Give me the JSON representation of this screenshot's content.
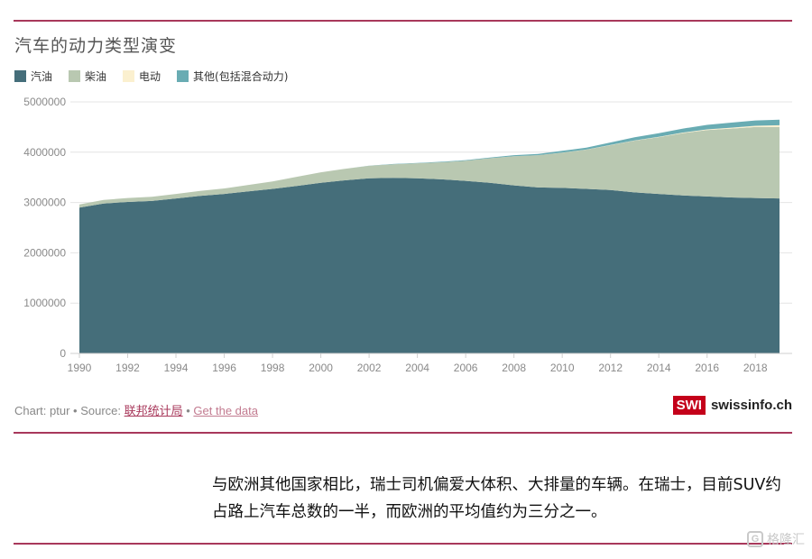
{
  "chart_data": {
    "type": "area",
    "stacked": true,
    "title": "汽车的动力类型演变",
    "x": [
      1990,
      1991,
      1992,
      1993,
      1994,
      1995,
      1996,
      1997,
      1998,
      1999,
      2000,
      2001,
      2002,
      2003,
      2004,
      2005,
      2006,
      2007,
      2008,
      2009,
      2010,
      2011,
      2012,
      2013,
      2014,
      2015,
      2016,
      2017,
      2018,
      2019
    ],
    "series": [
      {
        "name": "汽油",
        "color": "#456e7a",
        "values": [
          2900000,
          2980000,
          3010000,
          3030000,
          3080000,
          3130000,
          3170000,
          3220000,
          3270000,
          3330000,
          3390000,
          3440000,
          3480000,
          3490000,
          3480000,
          3460000,
          3430000,
          3390000,
          3340000,
          3300000,
          3290000,
          3270000,
          3250000,
          3200000,
          3170000,
          3140000,
          3120000,
          3100000,
          3090000,
          3080000
        ]
      },
      {
        "name": "柴油",
        "color": "#b9c8b1",
        "values": [
          60000,
          70000,
          80000,
          85000,
          90000,
          100000,
          110000,
          130000,
          150000,
          180000,
          210000,
          230000,
          250000,
          270000,
          300000,
          340000,
          400000,
          490000,
          580000,
          640000,
          700000,
          780000,
          890000,
          1030000,
          1130000,
          1240000,
          1320000,
          1370000,
          1410000,
          1420000
        ]
      },
      {
        "name": "电动",
        "color": "#fbf0cf",
        "values": [
          0,
          0,
          0,
          0,
          0,
          0,
          0,
          0,
          0,
          0,
          0,
          0,
          0,
          0,
          0,
          0,
          0,
          0,
          0,
          0,
          1000,
          2000,
          3000,
          5000,
          7000,
          10000,
          13000,
          18000,
          25000,
          35000
        ]
      },
      {
        "name": "其他(包括混合动力)",
        "color": "#69acb3",
        "values": [
          0,
          0,
          0,
          0,
          0,
          0,
          0,
          0,
          0,
          0,
          0,
          1000,
          3000,
          5000,
          7000,
          10000,
          12000,
          15000,
          20000,
          25000,
          35000,
          40000,
          50000,
          60000,
          70000,
          80000,
          90000,
          100000,
          105000,
          110000
        ]
      }
    ],
    "y_ticks": [
      0,
      1000000,
      2000000,
      3000000,
      4000000,
      5000000
    ],
    "y_tick_labels": [
      "0",
      "1000000",
      "2000000",
      "3000000",
      "4000000",
      "5000000"
    ],
    "x_ticks": [
      1990,
      1992,
      1994,
      1996,
      1998,
      2000,
      2002,
      2004,
      2006,
      2008,
      2010,
      2012,
      2014,
      2016,
      2018
    ],
    "xlim": [
      1990,
      2019
    ],
    "ylim": [
      0,
      5000000
    ],
    "grid": true,
    "legend_position": "top-left"
  },
  "footer": {
    "prefix": "Chart: ptur • Source: ",
    "source_link": "联邦统计局",
    "separator": " • ",
    "data_link": "Get the data"
  },
  "brand": {
    "box": "SWI",
    "name": "swissinfo.ch"
  },
  "caption": "与欧洲其他国家相比，瑞士司机偏爱大体积、大排量的车辆。在瑞士，目前SUV约占路上汽车总数的一半，而欧洲的平均值约为三分之一。",
  "watermark": "格隆汇"
}
